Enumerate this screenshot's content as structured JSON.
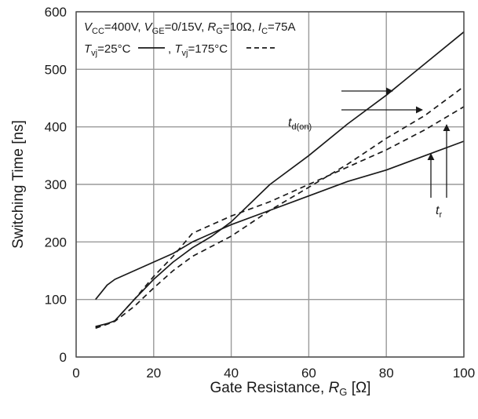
{
  "chart_data": {
    "type": "line",
    "xlabel": "Gate Resistance, R_G [Ω]",
    "ylabel": "Switching Time [ns]",
    "xlim": [
      0,
      100
    ],
    "ylim": [
      0,
      600
    ],
    "x_ticks": [
      0,
      20,
      40,
      60,
      80,
      100
    ],
    "y_ticks": [
      0,
      100,
      200,
      300,
      400,
      500,
      600
    ],
    "grid": true,
    "conditions": "V_CC=400V, V_GE=0/15V, R_G=10Ω, I_C=75A",
    "legend": [
      {
        "label": "T_vj=25°C",
        "style": "solid"
      },
      {
        "label": "T_vj=175°C",
        "style": "dashed"
      }
    ],
    "series": [
      {
        "name": "t_d(on), T_vj=25°C",
        "style": "solid",
        "x": [
          5,
          8,
          10,
          15,
          20,
          25,
          30,
          40,
          50,
          60,
          70,
          80,
          90,
          100
        ],
        "y": [
          100,
          125,
          135,
          150,
          165,
          180,
          200,
          230,
          255,
          280,
          305,
          325,
          350,
          375
        ]
      },
      {
        "name": "t_r, T_vj=25°C",
        "style": "solid",
        "x": [
          5,
          8,
          10,
          15,
          20,
          25,
          30,
          35,
          40,
          50,
          60,
          70,
          80,
          90,
          100
        ],
        "y": [
          53,
          58,
          63,
          100,
          135,
          165,
          190,
          210,
          235,
          300,
          350,
          405,
          455,
          510,
          565
        ]
      },
      {
        "name": "t_d(on), T_vj=175°C",
        "style": "dashed",
        "x": [
          5,
          8,
          10,
          15,
          20,
          25,
          30,
          40,
          50,
          60,
          70,
          80,
          90,
          100
        ],
        "y": [
          50,
          57,
          62,
          88,
          120,
          150,
          175,
          210,
          255,
          295,
          335,
          380,
          420,
          470
        ]
      },
      {
        "name": "t_r, T_vj=175°C",
        "style": "dashed",
        "x": [
          5,
          8,
          10,
          15,
          20,
          25,
          30,
          40,
          50,
          60,
          70,
          80,
          90,
          100
        ],
        "y": [
          52,
          58,
          63,
          100,
          140,
          175,
          215,
          245,
          270,
          300,
          330,
          360,
          395,
          435
        ]
      }
    ],
    "annotations": [
      {
        "text": "t_d(on)",
        "arrows_point_to": [
          "t_d(on), T_vj=25°C",
          "t_d(on), T_vj=175°C"
        ]
      },
      {
        "text": "t_r",
        "arrows_point_to": [
          "t_r, T_vj=25°C",
          "t_r, T_vj=175°C"
        ]
      }
    ]
  },
  "text": {
    "ylabel": "Switching Time [ns]",
    "xlabel_main": "Gate Resistance, ",
    "xlabel_symbol": "R",
    "xlabel_sub": "G",
    "xlabel_unit": " [Ω]",
    "cond1": [
      {
        "t": "V",
        "i": true
      },
      {
        "t": "CC",
        "sub": true
      },
      {
        "t": "=400V, "
      },
      {
        "t": "V",
        "i": true
      },
      {
        "t": "GE",
        "sub": true
      },
      {
        "t": "=0/15V, "
      },
      {
        "t": "R",
        "i": true
      },
      {
        "t": "G",
        "sub": true
      },
      {
        "t": "=10Ω, "
      },
      {
        "t": "I",
        "i": true
      },
      {
        "t": "C",
        "sub": true
      },
      {
        "t": "=75A"
      }
    ],
    "legend_solid": [
      {
        "t": "T",
        "i": true
      },
      {
        "t": "vj",
        "sub": true
      },
      {
        "t": "=25°C"
      }
    ],
    "legend_dashed": [
      {
        "t": ", "
      },
      {
        "t": "T",
        "i": true
      },
      {
        "t": "vj",
        "sub": true
      },
      {
        "t": "=175°C"
      }
    ],
    "ann_td": [
      {
        "t": "t",
        "i": true
      },
      {
        "t": "d(on)",
        "sub": true
      }
    ],
    "ann_tr": [
      {
        "t": "t",
        "i": true
      },
      {
        "t": "r",
        "sub": true
      }
    ]
  }
}
